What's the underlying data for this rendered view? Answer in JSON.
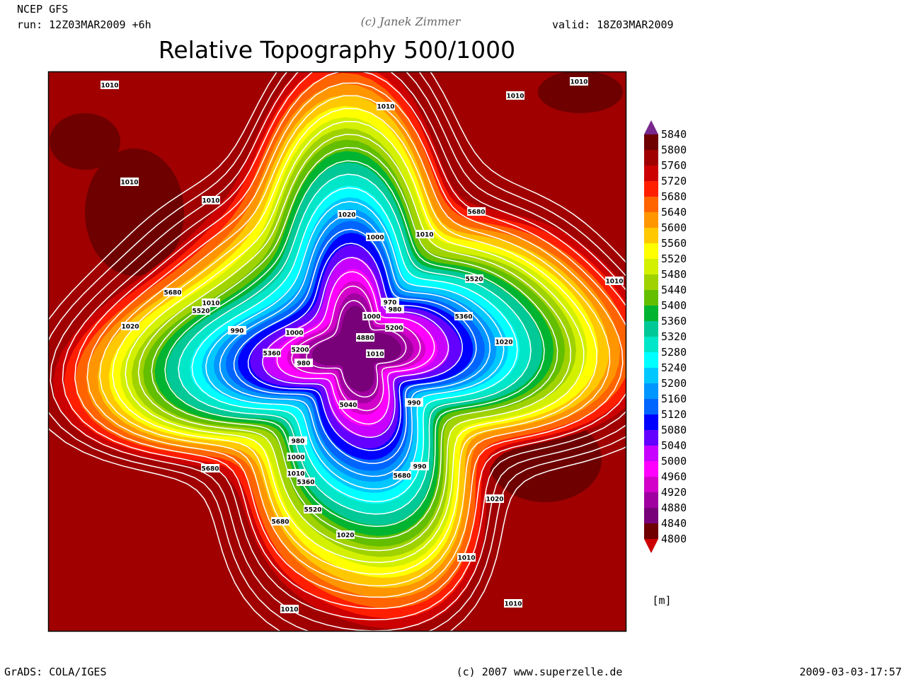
{
  "header": {
    "model": "NCEP GFS",
    "run": "run: 12Z03MAR2009 +6h",
    "copyright": "(c) Janek Zimmer",
    "valid": "valid: 18Z03MAR2009",
    "title": "Relative Topography 500/1000"
  },
  "colorbar": {
    "levels": [
      "5840",
      "5800",
      "5760",
      "5720",
      "5680",
      "5640",
      "5600",
      "5560",
      "5520",
      "5480",
      "5440",
      "5400",
      "5360",
      "5320",
      "5280",
      "5240",
      "5200",
      "5160",
      "5120",
      "5080",
      "5040",
      "5000",
      "4960",
      "4920",
      "4880",
      "4840",
      "4800"
    ],
    "colors": [
      "#78288c",
      "#6e0000",
      "#a00000",
      "#cc0000",
      "#ff1e00",
      "#ff6400",
      "#ff9600",
      "#ffc800",
      "#ffff00",
      "#d2f000",
      "#a0d200",
      "#64be00",
      "#00b432",
      "#00c896",
      "#00e6c8",
      "#00ffff",
      "#00c8ff",
      "#0096ff",
      "#0064ff",
      "#0000ff",
      "#6400ff",
      "#c800ff",
      "#ff00ff",
      "#d200c8",
      "#a000a0",
      "#780078",
      "#6e0000",
      "#cc0000"
    ],
    "unit": "[m]"
  },
  "contour_labels": [
    "1010",
    "1010",
    "1010",
    "1010",
    "1010",
    "1010",
    "1020",
    "1000",
    "1010",
    "5680",
    "5520",
    "1010",
    "5680",
    "1010",
    "5520",
    "1020",
    "990",
    "1000",
    "5360",
    "5200",
    "980",
    "970",
    "980",
    "1000",
    "5200",
    "4880",
    "1010",
    "5360",
    "1020",
    "5040",
    "990",
    "980",
    "1000",
    "1010",
    "5360",
    "990",
    "5680",
    "5680",
    "5520",
    "1020",
    "5680",
    "1020",
    "1010",
    "1010",
    "1010"
  ],
  "footer": {
    "left": "GrADS: COLA/IGES",
    "center": "(c) 2007 www.superzelle.de",
    "right": "2009-03-03-17:57"
  }
}
